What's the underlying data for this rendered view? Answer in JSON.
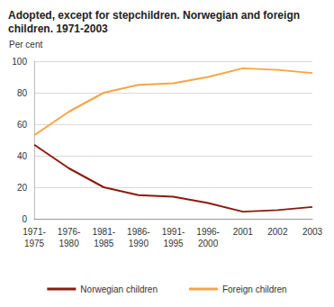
{
  "chart_data": {
    "type": "line",
    "title": "Adopted, except for stepchildren. Norwegian and foreign children. 1971-2003",
    "y_label": "Per cent",
    "categories": [
      "1971-1975",
      "1976-1980",
      "1981-1985",
      "1986-1990",
      "1991-1995",
      "1996-2000",
      "2001",
      "2002",
      "2003"
    ],
    "series": [
      {
        "name": "Norwegian children",
        "color": "#8b1a0e",
        "values": [
          47,
          32,
          20,
          15,
          14,
          10,
          4.5,
          5.5,
          7.5
        ]
      },
      {
        "name": "Foreign children",
        "color": "#f7a541",
        "values": [
          53,
          68,
          80,
          85,
          86,
          90,
          95.5,
          94.5,
          92.5
        ]
      }
    ],
    "ylim": [
      0,
      100
    ],
    "yticks": [
      0,
      20,
      40,
      60,
      80,
      100
    ],
    "grid": true,
    "legend": "bottom"
  }
}
